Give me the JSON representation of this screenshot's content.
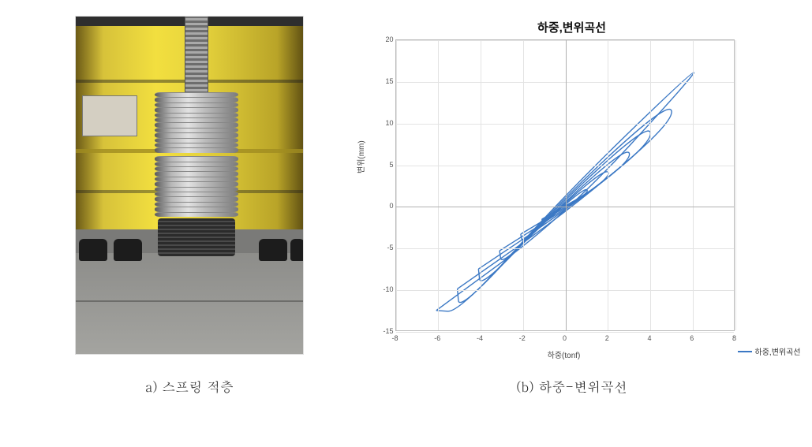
{
  "left": {
    "caption": "a) 스프링 적층"
  },
  "right": {
    "caption": "(b) 하중-변위곡선"
  },
  "chart": {
    "type": "line",
    "title": "하중,변위곡선",
    "xlabel": "하중(tonf)",
    "ylabel": "변위(mm)",
    "legend_label": "하중,변위곡선",
    "xlim": [
      -8,
      8
    ],
    "ylim": [
      -15,
      20
    ],
    "xticks": [
      -8,
      -6,
      -4,
      -2,
      0,
      2,
      4,
      6,
      8
    ],
    "yticks": [
      -15,
      -10,
      -5,
      0,
      5,
      10,
      15,
      20
    ],
    "grid_color": "#e3e3e3",
    "axis_color": "#b0b0b0",
    "line_color": "#3b78c4",
    "background_color": "#ffffff",
    "title_fontsize": 15,
    "label_fontsize": 10,
    "tick_fontsize": 9,
    "line_width": 1.4,
    "loops": [
      [
        [
          -1.1,
          -1.6
        ],
        [
          0,
          0
        ],
        [
          1.1,
          1.6
        ],
        [
          1.0,
          2.2
        ],
        [
          0,
          0.2
        ],
        [
          -1.0,
          -2.2
        ],
        [
          -1.1,
          -1.6
        ]
      ],
      [
        [
          -2.1,
          -3.4
        ],
        [
          0,
          -0.2
        ],
        [
          2.1,
          3.4
        ],
        [
          2.0,
          4.6
        ],
        [
          0,
          0.4
        ],
        [
          -2.0,
          -4.6
        ],
        [
          -2.1,
          -3.4
        ]
      ],
      [
        [
          -3.1,
          -5.4
        ],
        [
          0,
          -0.4
        ],
        [
          3.1,
          5.4
        ],
        [
          3.0,
          7.2
        ],
        [
          0,
          0.6
        ],
        [
          -3.0,
          -7.2
        ],
        [
          -3.1,
          -5.4
        ]
      ],
      [
        [
          -4.1,
          -7.6
        ],
        [
          0,
          -0.6
        ],
        [
          4.1,
          7.6
        ],
        [
          4.0,
          10.0
        ],
        [
          0,
          0.9
        ],
        [
          -4.0,
          -10.0
        ],
        [
          -4.1,
          -7.6
        ]
      ],
      [
        [
          -5.1,
          -10.0
        ],
        [
          0,
          -0.9
        ],
        [
          5.1,
          10.0
        ],
        [
          5.0,
          12.8
        ],
        [
          0,
          1.2
        ],
        [
          -5.0,
          -12.8
        ],
        [
          -5.1,
          -10.0
        ]
      ],
      [
        [
          -6.1,
          -12.6
        ],
        [
          0,
          -1.2
        ],
        [
          6.2,
          16.0
        ],
        [
          6.0,
          16.2
        ],
        [
          0,
          1.4
        ],
        [
          -5.0,
          -12.8
        ],
        [
          -6.1,
          -12.6
        ]
      ]
    ]
  }
}
